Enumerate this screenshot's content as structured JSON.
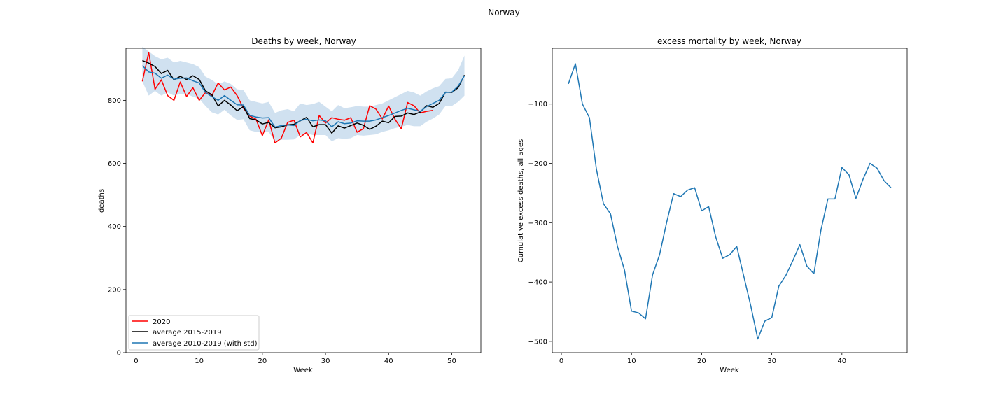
{
  "figure": {
    "suptitle": "Norway"
  },
  "chart_data": [
    {
      "type": "line",
      "title": "Deaths by week, Norway",
      "xlabel": "Week",
      "ylabel": "deaths",
      "xlim": [
        -1.6,
        54.6
      ],
      "ylim": [
        0,
        965
      ],
      "xticks": [
        0,
        10,
        20,
        30,
        40,
        50
      ],
      "yticks": [
        0,
        200,
        400,
        600,
        800
      ],
      "legend": {
        "position": "lower-left"
      },
      "series": [
        {
          "name": "2020",
          "color": "#ff0000",
          "x": [
            1,
            2,
            3,
            4,
            5,
            6,
            7,
            8,
            9,
            10,
            11,
            12,
            13,
            14,
            15,
            16,
            17,
            18,
            19,
            20,
            21,
            22,
            23,
            24,
            25,
            26,
            27,
            28,
            29,
            30,
            31,
            32,
            33,
            34,
            35,
            36,
            37,
            38,
            39,
            40,
            41,
            42,
            43,
            44,
            45,
            46,
            47
          ],
          "values": [
            860,
            952,
            835,
            865,
            815,
            800,
            858,
            812,
            840,
            800,
            825,
            815,
            855,
            833,
            842,
            815,
            775,
            750,
            740,
            688,
            738,
            665,
            680,
            730,
            737,
            684,
            698,
            665,
            752,
            728,
            745,
            740,
            737,
            745,
            699,
            710,
            783,
            772,
            741,
            782,
            740,
            710,
            793,
            783,
            760,
            765,
            768
          ]
        },
        {
          "name": "average 2015-2019",
          "color": "#000000",
          "x": [
            1,
            2,
            3,
            4,
            5,
            6,
            7,
            8,
            9,
            10,
            11,
            12,
            13,
            14,
            15,
            16,
            17,
            18,
            19,
            20,
            21,
            22,
            23,
            24,
            25,
            26,
            27,
            28,
            29,
            30,
            31,
            32,
            33,
            34,
            35,
            36,
            37,
            38,
            39,
            40,
            41,
            42,
            43,
            44,
            45,
            46,
            47,
            48,
            49,
            50,
            51,
            52
          ],
          "values": [
            926,
            918,
            907,
            885,
            895,
            865,
            876,
            866,
            878,
            866,
            830,
            818,
            782,
            800,
            785,
            767,
            780,
            742,
            738,
            725,
            730,
            713,
            716,
            722,
            724,
            735,
            746,
            716,
            723,
            723,
            696,
            719,
            712,
            720,
            728,
            721,
            708,
            718,
            734,
            729,
            749,
            750,
            760,
            755,
            763,
            783,
            778,
            790,
            826,
            825,
            840,
            880
          ]
        },
        {
          "name": "average 2010-2019 (with std)",
          "color": "#1f77b4",
          "fill": "#a9c8e4",
          "x": [
            1,
            2,
            3,
            4,
            5,
            6,
            7,
            8,
            9,
            10,
            11,
            12,
            13,
            14,
            15,
            16,
            17,
            18,
            19,
            20,
            21,
            22,
            23,
            24,
            25,
            26,
            27,
            28,
            29,
            30,
            31,
            32,
            33,
            34,
            35,
            36,
            37,
            38,
            39,
            40,
            41,
            42,
            43,
            44,
            45,
            46,
            47,
            48,
            49,
            50,
            51,
            52
          ],
          "values": [
            910,
            890,
            886,
            870,
            880,
            867,
            870,
            871,
            862,
            855,
            825,
            812,
            800,
            815,
            800,
            786,
            785,
            752,
            747,
            744,
            745,
            715,
            720,
            722,
            720,
            736,
            740,
            735,
            738,
            735,
            716,
            732,
            726,
            728,
            735,
            734,
            734,
            738,
            745,
            752,
            760,
            768,
            775,
            770,
            765,
            780,
            790,
            800,
            825,
            826,
            845,
            878
          ],
          "upper": [
            970,
            955,
            940,
            930,
            935,
            920,
            925,
            920,
            915,
            905,
            875,
            865,
            850,
            860,
            852,
            835,
            833,
            800,
            795,
            790,
            795,
            760,
            768,
            772,
            765,
            790,
            785,
            788,
            795,
            780,
            765,
            785,
            775,
            778,
            782,
            780,
            780,
            785,
            790,
            800,
            810,
            820,
            830,
            825,
            815,
            828,
            838,
            845,
            868,
            870,
            895,
            942
          ],
          "lower": [
            860,
            815,
            830,
            815,
            825,
            815,
            820,
            820,
            812,
            805,
            782,
            762,
            755,
            770,
            752,
            738,
            740,
            705,
            700,
            698,
            700,
            670,
            675,
            675,
            676,
            690,
            695,
            690,
            690,
            690,
            670,
            680,
            678,
            680,
            690,
            688,
            690,
            692,
            700,
            705,
            712,
            716,
            722,
            718,
            718,
            732,
            742,
            755,
            782,
            782,
            795,
            815
          ]
        }
      ]
    },
    {
      "type": "line",
      "title": "excess mortality by week, Norway",
      "xlabel": "Week",
      "ylabel": "Cumulative excess deaths, all ages",
      "xlim": [
        -1.3,
        49.3
      ],
      "ylim": [
        -519,
        -6
      ],
      "xticks": [
        0,
        10,
        20,
        30,
        40
      ],
      "yticks": [
        -500,
        -400,
        -300,
        -200,
        -100
      ],
      "series": [
        {
          "color": "#1f77b4",
          "x": [
            1,
            2,
            3,
            4,
            5,
            6,
            7,
            8,
            9,
            10,
            11,
            12,
            13,
            14,
            15,
            16,
            17,
            18,
            19,
            20,
            21,
            22,
            23,
            24,
            25,
            26,
            27,
            28,
            29,
            30,
            31,
            32,
            33,
            34,
            35,
            36,
            37,
            38,
            39,
            40,
            41,
            42,
            43,
            44,
            45,
            46,
            47
          ],
          "values": [
            -66,
            -32,
            -100,
            -123,
            -210,
            -268,
            -285,
            -340,
            -380,
            -449,
            -452,
            -462,
            -388,
            -354,
            -300,
            -251,
            -256,
            -245,
            -241,
            -280,
            -273,
            -324,
            -360,
            -354,
            -340,
            -390,
            -440,
            -496,
            -466,
            -460,
            -407,
            -389,
            -364,
            -337,
            -373,
            -386,
            -313,
            -260,
            -260,
            -207,
            -219,
            -259,
            -227,
            -200,
            -208,
            -229,
            -241
          ]
        }
      ]
    }
  ]
}
